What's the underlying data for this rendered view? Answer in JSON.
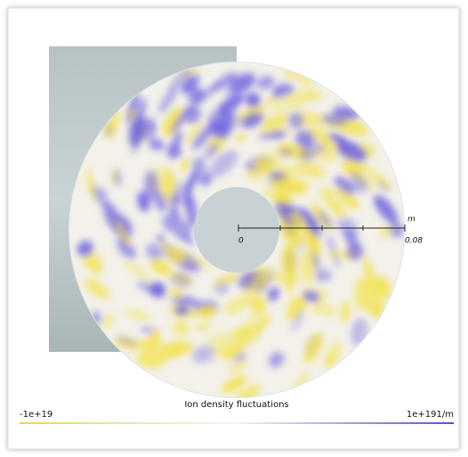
{
  "scale_bar": {
    "unit": "m",
    "start": "0",
    "end": "0.08"
  },
  "colorbar": {
    "title": "Ion density fluctuations",
    "min_label": "-1e+19",
    "max_label": "1e+191/m"
  }
}
